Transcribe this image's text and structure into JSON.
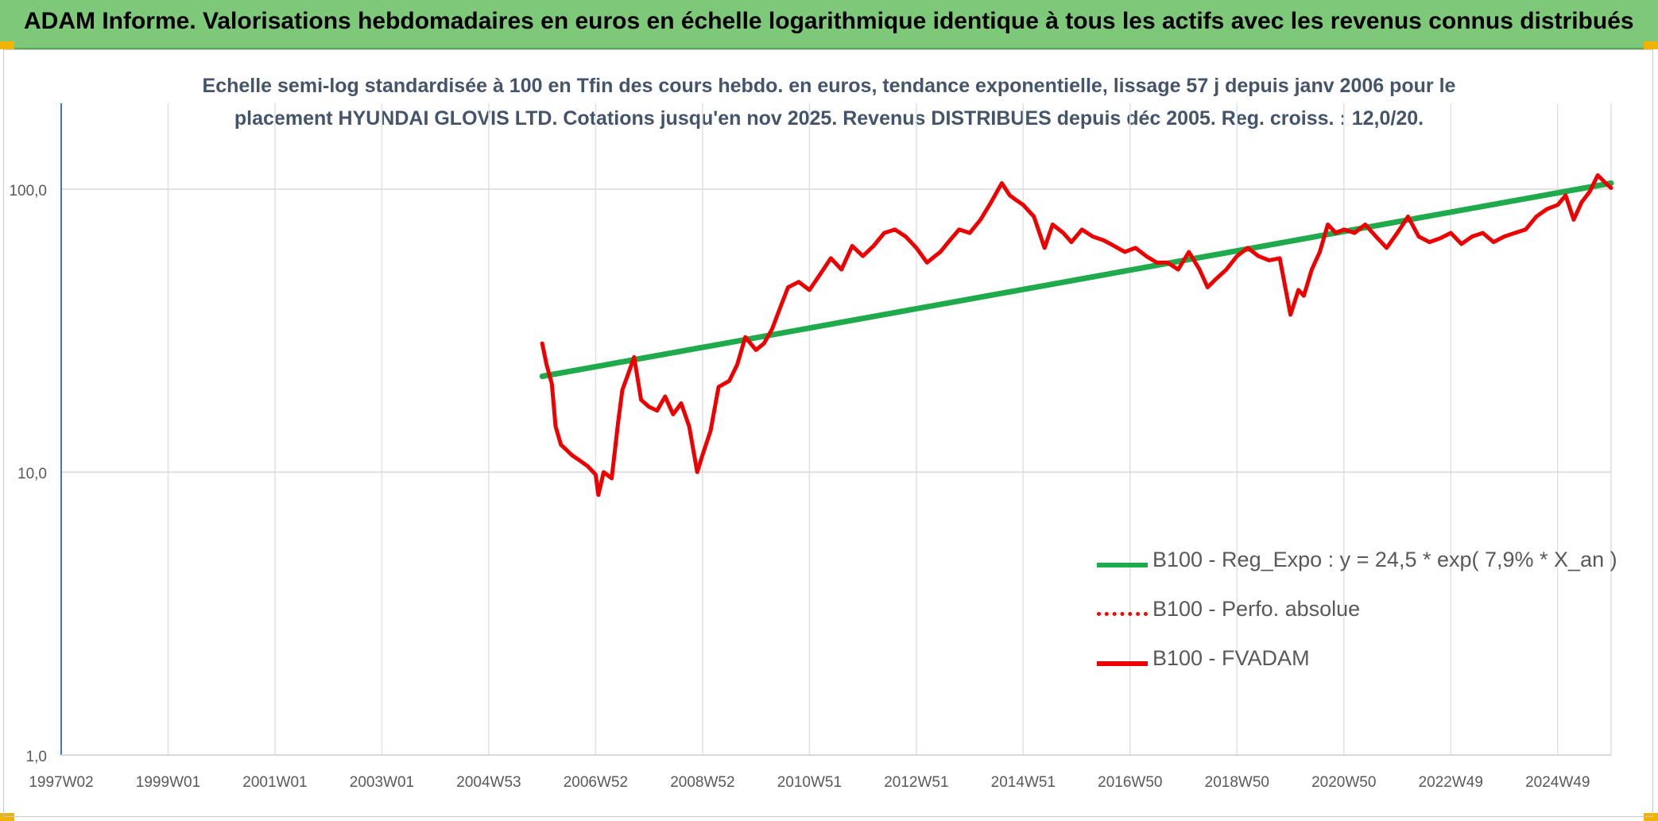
{
  "header": {
    "title": "ADAM Informe. Valorisations hebdomadaires en euros en échelle logarithmique identique à tous les actifs avec les revenus connus distribués"
  },
  "chart_data": {
    "type": "line",
    "title_lines": [
      "Echelle semi-log standardisée à 100 en Tfin des cours hebdo. en euros, tendance exponentielle, lissage 57 j depuis janv 2006 pour le",
      "placement HYUNDAI GLOVIS LTD. Cotations jusqu'en nov 2025. Revenus DISTRIBUES depuis déc 2005. Reg. croiss. : 12,0/20."
    ],
    "y_scale": "log",
    "ylim": [
      1,
      200
    ],
    "y_ticks": [
      {
        "value": 1,
        "label": "1,0"
      },
      {
        "value": 10,
        "label": "10,0"
      },
      {
        "value": 100,
        "label": "100,0"
      }
    ],
    "xlim": [
      1997.0,
      2026.0
    ],
    "x_ticks": [
      {
        "value": 1997.0,
        "label": "1997W02"
      },
      {
        "value": 1999.0,
        "label": "1999W01"
      },
      {
        "value": 2001.0,
        "label": "2001W01"
      },
      {
        "value": 2003.0,
        "label": "2003W01"
      },
      {
        "value": 2005.0,
        "label": "2004W53"
      },
      {
        "value": 2007.0,
        "label": "2006W52"
      },
      {
        "value": 2009.0,
        "label": "2008W52"
      },
      {
        "value": 2011.0,
        "label": "2010W51"
      },
      {
        "value": 2013.0,
        "label": "2012W51"
      },
      {
        "value": 2015.0,
        "label": "2014W51"
      },
      {
        "value": 2017.0,
        "label": "2016W50"
      },
      {
        "value": 2019.0,
        "label": "2018W50"
      },
      {
        "value": 2021.0,
        "label": "2020W50"
      },
      {
        "value": 2023.0,
        "label": "2022W49"
      },
      {
        "value": 2025.0,
        "label": "2024W49"
      }
    ],
    "grid": true,
    "legend_position": "bottom-right",
    "series": [
      {
        "name": "B100 - Reg_Expo : y = 24,5 * exp( 7,9% *  X_an )",
        "color": "#1faa4b",
        "style": "solid",
        "x": [
          2006.0,
          2026.0
        ],
        "y": [
          21.8,
          105.0
        ]
      },
      {
        "name": "B100 - Perfo. absolue",
        "color": "#ff0000",
        "style": "dotted",
        "x": [],
        "y": []
      },
      {
        "name": "B100 - FVADAM",
        "color": "#ee0000",
        "style": "solid",
        "x": [
          2006.0,
          2006.08,
          2006.18,
          2006.25,
          2006.35,
          2006.45,
          2006.55,
          2006.7,
          2006.85,
          2007.0,
          2007.05,
          2007.15,
          2007.3,
          2007.42,
          2007.5,
          2007.6,
          2007.72,
          2007.85,
          2008.0,
          2008.15,
          2008.3,
          2008.45,
          2008.6,
          2008.75,
          2008.9,
          2009.0,
          2009.15,
          2009.3,
          2009.5,
          2009.65,
          2009.8,
          2010.0,
          2010.15,
          2010.3,
          2010.45,
          2010.6,
          2010.8,
          2011.0,
          2011.2,
          2011.4,
          2011.6,
          2011.8,
          2012.0,
          2012.2,
          2012.4,
          2012.6,
          2012.8,
          2013.0,
          2013.2,
          2013.35,
          2013.45,
          2013.6,
          2013.8,
          2014.0,
          2014.2,
          2014.4,
          2014.6,
          2014.75,
          2014.85,
          2015.0,
          2015.2,
          2015.4,
          2015.55,
          2015.75,
          2015.9,
          2016.1,
          2016.3,
          2016.5,
          2016.7,
          2016.9,
          2017.1,
          2017.3,
          2017.5,
          2017.7,
          2017.9,
          2018.1,
          2018.3,
          2018.45,
          2018.6,
          2018.8,
          2019.0,
          2019.2,
          2019.4,
          2019.6,
          2019.8,
          2020.0,
          2020.15,
          2020.25,
          2020.4,
          2020.55,
          2020.7,
          2020.85,
          2021.0,
          2021.2,
          2021.4,
          2021.6,
          2021.8,
          2022.0,
          2022.2,
          2022.4,
          2022.6,
          2022.8,
          2023.0,
          2023.2,
          2023.4,
          2023.6,
          2023.8,
          2024.0,
          2024.2,
          2024.4,
          2024.6,
          2024.8,
          2025.0,
          2025.15,
          2025.3,
          2025.45,
          2025.6,
          2025.75,
          2025.9,
          2026.0
        ],
        "y": [
          28.5,
          24.0,
          20.5,
          14.5,
          12.5,
          12.0,
          11.5,
          11.0,
          10.5,
          9.8,
          8.3,
          10.0,
          9.5,
          15.0,
          19.5,
          22.0,
          25.5,
          18.0,
          17.0,
          16.5,
          18.5,
          16.0,
          17.5,
          14.5,
          10.0,
          11.5,
          14.0,
          20.0,
          21.0,
          24.0,
          30.0,
          27.0,
          28.5,
          32.0,
          38.0,
          45.0,
          47.0,
          44.0,
          50.0,
          57.0,
          52.0,
          63.0,
          58.0,
          63.0,
          70.0,
          72.0,
          68.0,
          62.0,
          55.0,
          58.0,
          60.0,
          65.0,
          72.0,
          70.0,
          78.0,
          90.0,
          105.0,
          95.0,
          92.0,
          88.0,
          80.0,
          62.0,
          75.0,
          70.0,
          65.0,
          72.0,
          68.0,
          66.0,
          63.0,
          60.0,
          62.0,
          58.0,
          55.0,
          55.0,
          52.0,
          60.0,
          52.0,
          45.0,
          48.0,
          52.0,
          58.0,
          62.0,
          58.0,
          56.0,
          57.0,
          36.0,
          44.0,
          42.0,
          52.0,
          60.0,
          75.0,
          70.0,
          72.0,
          70.0,
          75.0,
          68.0,
          62.0,
          70.0,
          80.0,
          68.0,
          65.0,
          67.0,
          70.0,
          64.0,
          68.0,
          70.0,
          65.0,
          68.0,
          70.0,
          72.0,
          80.0,
          85.0,
          88.0,
          95.0,
          78.0,
          90.0,
          98.0,
          112.0,
          105.0,
          101.0
        ]
      }
    ]
  }
}
